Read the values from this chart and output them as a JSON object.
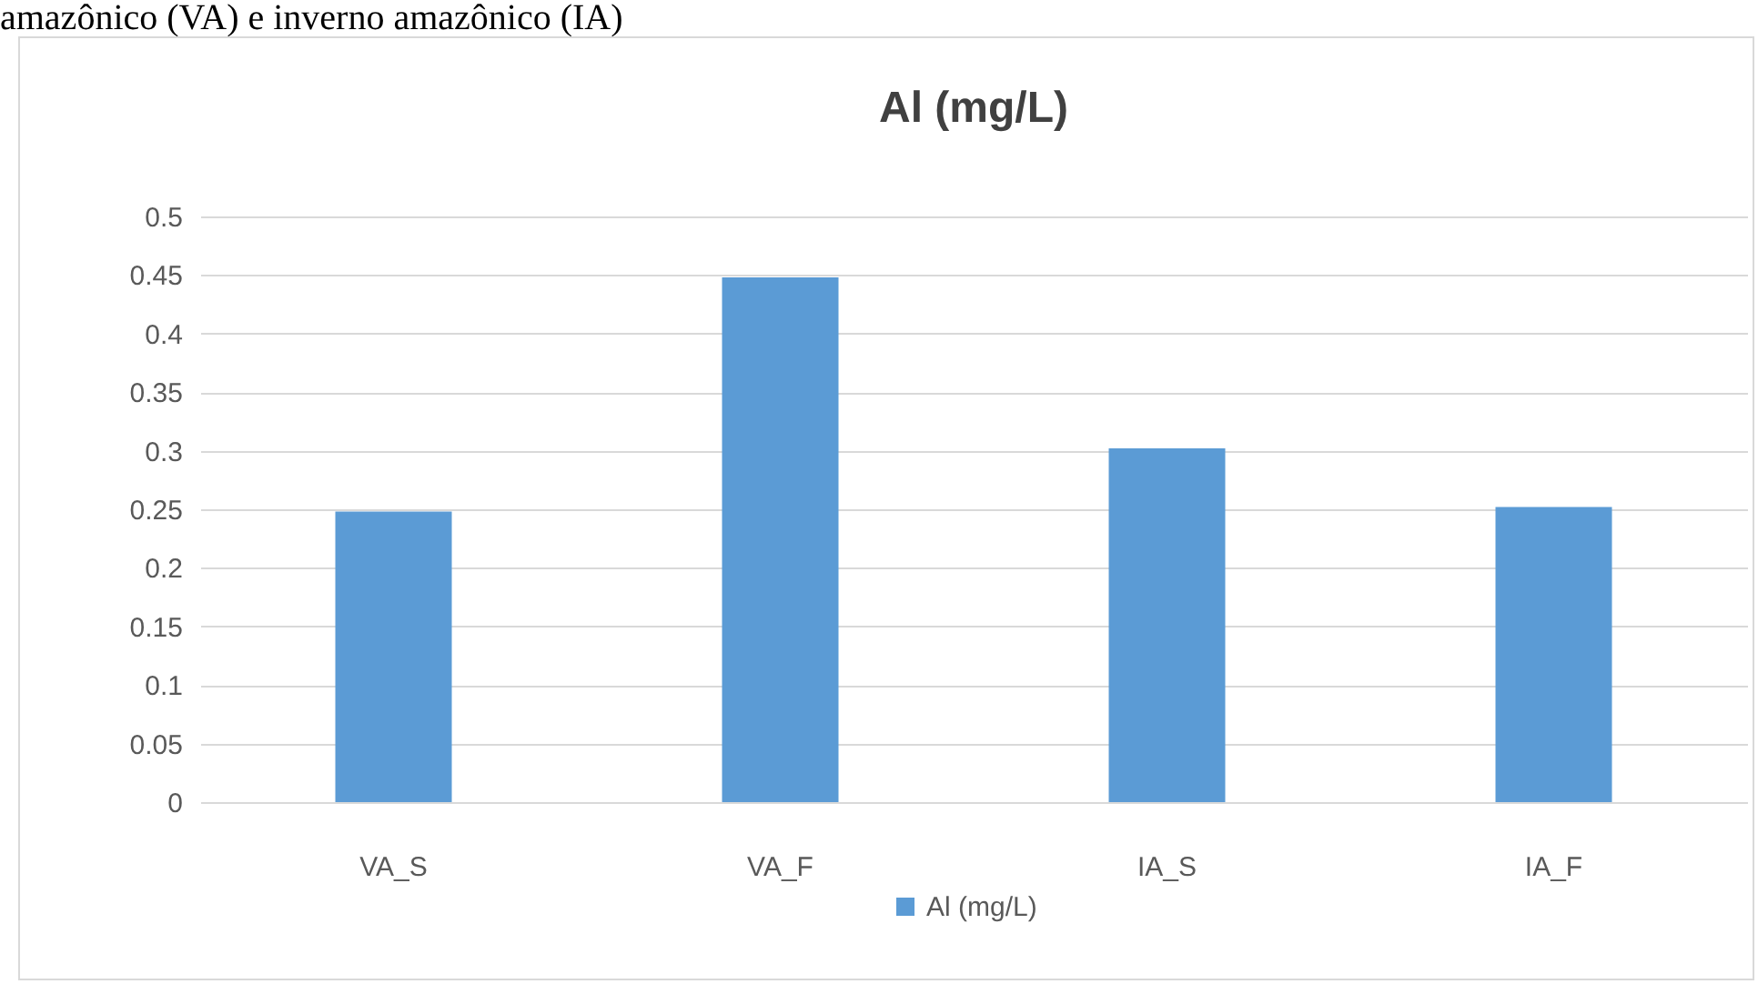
{
  "chart_data": {
    "type": "bar",
    "title": "Al (mg/L)",
    "annotations": [
      "amazônico (VA) e inverno amazônico (IA)"
    ],
    "categories": [
      "VA_S",
      "VA_F",
      "IA_S",
      "IA_F"
    ],
    "series": [
      {
        "name": "Al (mg/L)",
        "color": "#5b9bd5",
        "values": [
          0.248,
          0.448,
          0.302,
          0.252
        ]
      }
    ],
    "ylim": [
      0,
      0.5
    ],
    "yticks": [
      0,
      0.05,
      0.1,
      0.15,
      0.2,
      0.25,
      0.3,
      0.35,
      0.4,
      0.45,
      0.5
    ],
    "grid": "y",
    "legend": "bottom"
  }
}
